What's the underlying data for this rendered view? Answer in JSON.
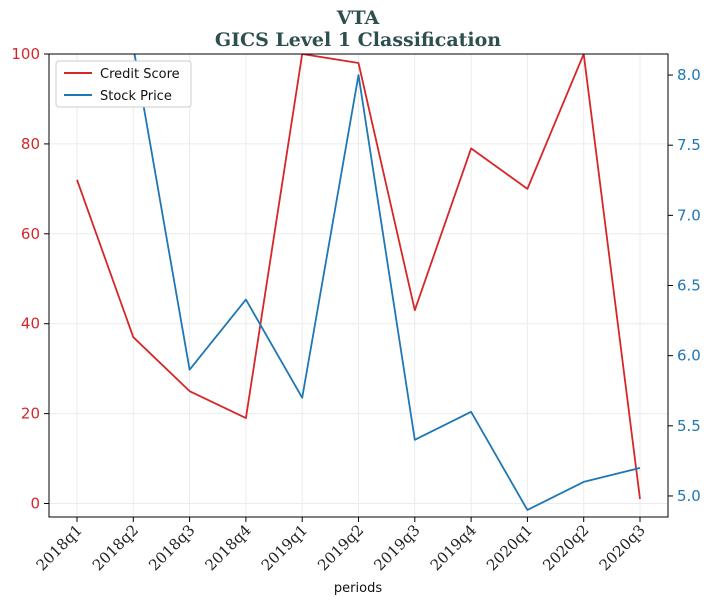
{
  "chart_data": {
    "type": "line",
    "title": "VTA",
    "subtitle": "GICS Level 1 Classification",
    "xlabel": "periods",
    "categories": [
      "2018q1",
      "2018q2",
      "2018q3",
      "2018q4",
      "2019q1",
      "2019q2",
      "2019q3",
      "2019q4",
      "2020q1",
      "2020q2",
      "2020q3"
    ],
    "y_left": {
      "ylim": [
        -3,
        100
      ],
      "ticks": [
        0,
        20,
        40,
        60,
        80,
        100
      ],
      "color": "#d62728"
    },
    "y_right": {
      "ylim": [
        4.85,
        8.15
      ],
      "ticks": [
        5.0,
        5.5,
        6.0,
        6.5,
        7.0,
        7.5,
        8.0
      ],
      "color": "#1f77b4"
    },
    "series": [
      {
        "name": "Credit Score",
        "axis": "left",
        "color": "#d62728",
        "values": [
          72,
          37,
          25,
          19,
          100,
          98,
          43,
          79,
          70,
          100,
          1
        ]
      },
      {
        "name": "Stock Price",
        "axis": "right",
        "color": "#1f77b4",
        "values": [
          null,
          8.2,
          5.9,
          6.4,
          5.7,
          8.0,
          5.4,
          5.6,
          4.9,
          5.1,
          5.2
        ]
      }
    ],
    "grid": true,
    "legend_position": "top-left"
  }
}
